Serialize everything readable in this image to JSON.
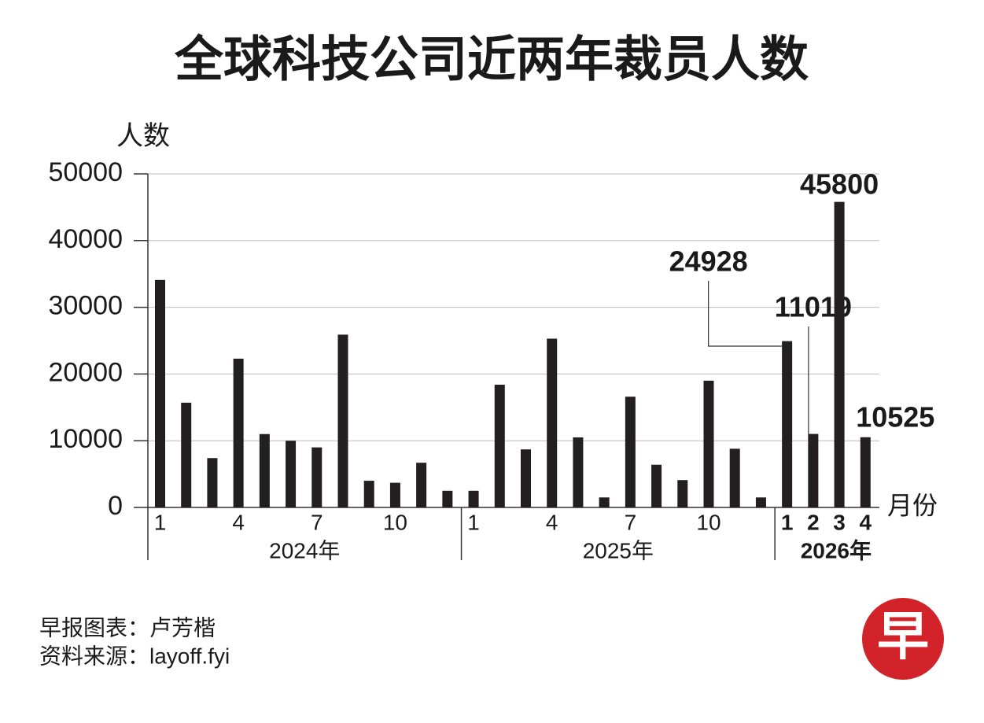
{
  "chart_data": {
    "type": "bar",
    "title": "全球科技公司近两年裁员人数",
    "y_label": "人数",
    "x_label": "月份",
    "categories": [
      "1",
      null,
      null,
      "4",
      null,
      null,
      "7",
      null,
      null,
      "10",
      null,
      null,
      "1",
      null,
      null,
      "4",
      null,
      null,
      "7",
      null,
      null,
      "10",
      null,
      null,
      "1",
      "2",
      "3",
      "4"
    ],
    "group_labels": [
      "2024年",
      "2025年",
      "2026年"
    ],
    "values": [
      34100,
      15700,
      7400,
      22300,
      11000,
      10000,
      9000,
      25900,
      4000,
      3700,
      6700,
      2500,
      2500,
      18400,
      8700,
      25300,
      10500,
      1500,
      16600,
      6400,
      4100,
      19000,
      8800,
      1500,
      24928,
      11019,
      45800,
      10525
    ],
    "color": "#231f20",
    "ylim": [
      0,
      50000
    ],
    "yticks": [
      0,
      10000,
      20000,
      30000,
      40000,
      50000
    ],
    "grid": true
  },
  "footer": [
    "早报图表：卢芳楷",
    "资料来源：layoff.fyi"
  ],
  "logo": "早"
}
